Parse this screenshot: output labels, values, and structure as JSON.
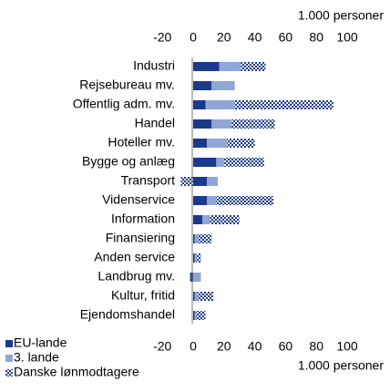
{
  "chart_data": {
    "type": "stacked_barh",
    "axis_label_top": "1.000 personer",
    "axis_label_bottom": "1.000 personer",
    "categories": [
      "Industri",
      "Rejsebureau mv.",
      "Offentlig adm. mv.",
      "Handel",
      "Hoteller mv.",
      "Bygge og anlæg",
      "Transport",
      "Videnservice",
      "Information",
      "Finansiering",
      "Anden service",
      "Landbrug mv.",
      "Kultur, fritid",
      "Ejendomshandel"
    ],
    "series": [
      {
        "name": "EU-lande",
        "color": "#1b3a8c",
        "pattern": "solid",
        "values": [
          17,
          12,
          8,
          12,
          9,
          15,
          9,
          9,
          6,
          1,
          1,
          -2,
          1,
          1
        ]
      },
      {
        "name": "3. lande",
        "color": "#8ea7d8",
        "pattern": "solid",
        "values": [
          14,
          15,
          19,
          13,
          13,
          5,
          7,
          6,
          5,
          2,
          1,
          5,
          2,
          1
        ]
      },
      {
        "name": "Danske lønmodtagere",
        "color": "#1b3a8c",
        "pattern": "crosshatch",
        "values": [
          16,
          0,
          64,
          28,
          18,
          26,
          -8,
          37,
          19,
          9,
          3,
          0,
          10,
          6
        ]
      }
    ],
    "xlim": [
      -20,
      100
    ],
    "xticks": [
      -20,
      0,
      20,
      40,
      60,
      80,
      100
    ]
  }
}
